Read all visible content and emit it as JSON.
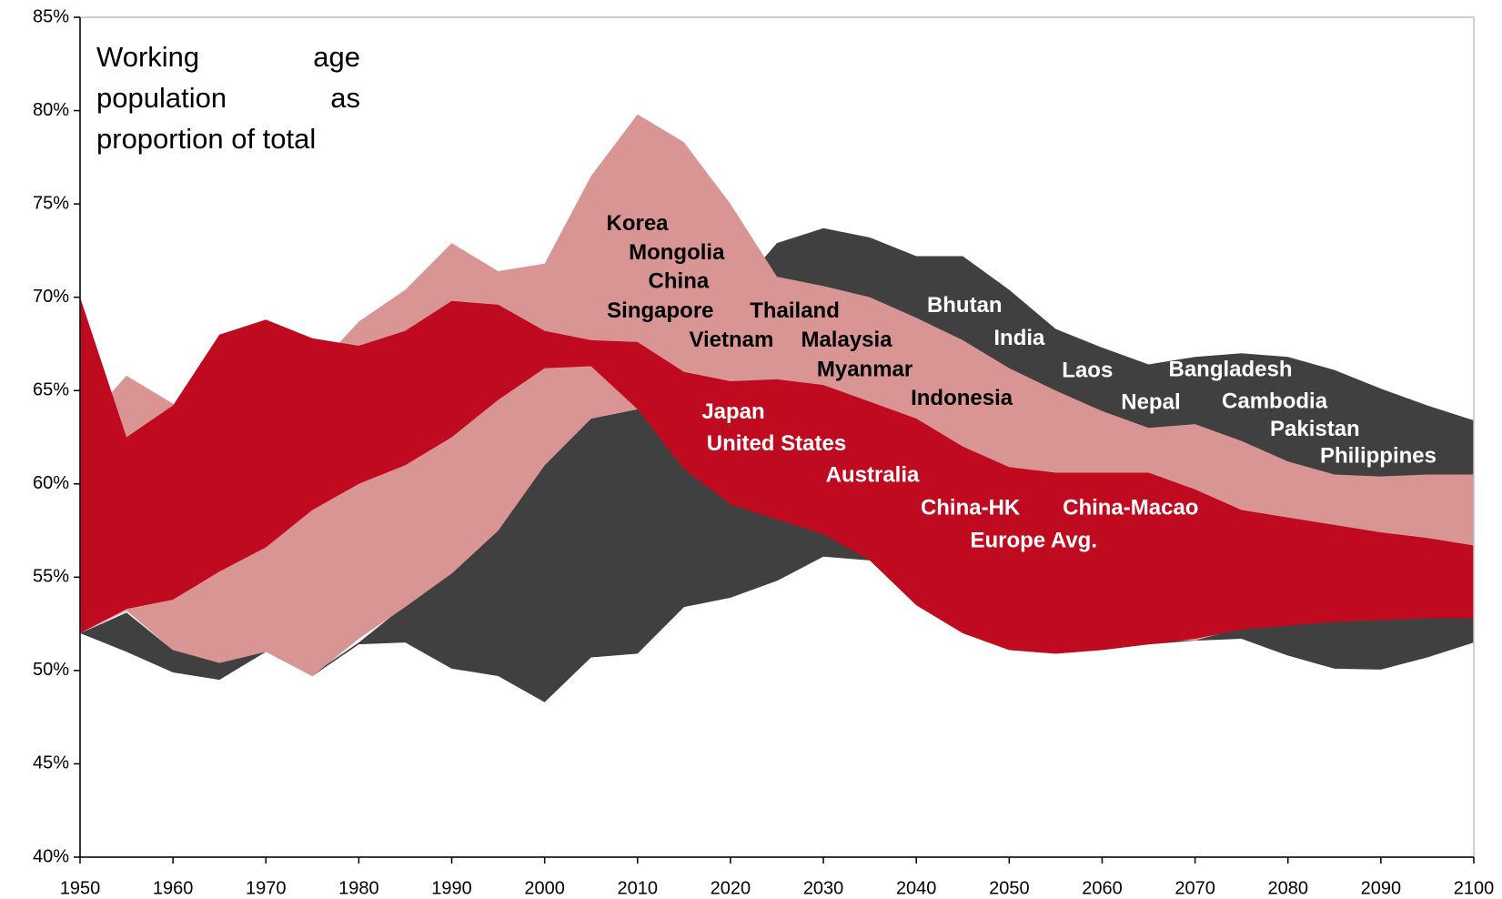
{
  "chart_data": {
    "type": "range_area",
    "title": "Working age population as proportion of total",
    "x": [
      1950,
      1955,
      1960,
      1965,
      1970,
      1975,
      1980,
      1985,
      1990,
      1995,
      2000,
      2005,
      2010,
      2015,
      2020,
      2025,
      2030,
      2035,
      2040,
      2045,
      2050,
      2055,
      2060,
      2065,
      2070,
      2075,
      2080,
      2085,
      2090,
      2095,
      2100
    ],
    "series": [
      {
        "color": "#404040",
        "upper": [
          52,
          53.1,
          51.1,
          50.5,
          51,
          49.8,
          51.5,
          53.5,
          55.2,
          57.5,
          61,
          63.5,
          64,
          66,
          70,
          72.9,
          73.7,
          73.2,
          72.2,
          72.2,
          70.4,
          68.3,
          67.3,
          66.4,
          66.8,
          67,
          66.8,
          66.1,
          65.1,
          64.2,
          63.4
        ],
        "lower": [
          52,
          51,
          49.9,
          49.5,
          51,
          49.7,
          51.4,
          51.5,
          50.1,
          49.7,
          48.3,
          50.7,
          50.9,
          53.4,
          53.9,
          54.8,
          56.1,
          55.9,
          53.5,
          52,
          51.1,
          50.9,
          51.1,
          51.4,
          51.6,
          51.7,
          50.8,
          50.1,
          50.05,
          50.7,
          51.5
        ]
      },
      {
        "color": "#d99594",
        "upper": [
          63,
          65.8,
          64.3,
          63,
          64,
          66,
          68.7,
          70.4,
          72.9,
          71.4,
          71.8,
          76.5,
          79.8,
          78.3,
          75,
          71.1,
          70.6,
          70,
          68.9,
          67.7,
          66.2,
          65,
          63.9,
          63,
          63.2,
          62.3,
          61.2,
          60.5,
          60.4,
          60.5,
          60.5
        ],
        "lower": [
          52,
          53.2,
          51.1,
          50.4,
          51,
          49.7,
          51.7,
          53.4,
          55.2,
          57.5,
          61,
          63.5,
          64,
          61,
          59,
          58.2,
          57.4,
          56,
          54,
          53,
          52,
          52,
          52,
          51.6,
          51.6,
          52.3,
          54,
          54,
          54,
          54,
          54
        ]
      },
      {
        "color": "#c00a20",
        "upper": [
          70,
          62.5,
          64.2,
          68,
          68.8,
          67.8,
          67.4,
          68.2,
          69.8,
          69.6,
          68.2,
          67.7,
          67.6,
          66,
          65.5,
          65.6,
          65.3,
          64.4,
          63.5,
          62,
          60.9,
          60.6,
          60.6,
          60.6,
          59.7,
          58.6,
          58.2,
          57.8,
          57.4,
          57.1,
          56.7
        ],
        "lower": [
          52,
          53.3,
          53.8,
          55.3,
          56.6,
          58.6,
          60,
          61,
          62.5,
          64.5,
          66.2,
          66.3,
          64,
          60.8,
          58.9,
          58.1,
          57.3,
          55.9,
          53.5,
          52,
          51.1,
          50.9,
          51.1,
          51.4,
          51.7,
          52.2,
          52.4,
          52.6,
          52.7,
          52.8,
          52.8
        ]
      }
    ],
    "annotations": [
      "Korea",
      "Mongolia",
      "China",
      "Singapore",
      "Vietnam",
      "Thailand",
      "Malaysia",
      "Myanmar",
      "Indonesia",
      "Bhutan",
      "India",
      "Laos",
      "Nepal",
      "Bangladesh",
      "Cambodia",
      "Pakistan",
      "Philippines",
      "Japan",
      "United States",
      "Australia",
      "China-HK",
      "China-Macao",
      "Europe Avg."
    ],
    "xlim": [
      1950,
      2100
    ],
    "xticks": [
      1950,
      1960,
      1970,
      1980,
      1990,
      2000,
      2010,
      2020,
      2030,
      2040,
      2050,
      2060,
      2070,
      2080,
      2090,
      2100
    ],
    "ylim": [
      40,
      85
    ],
    "yticks": [
      {
        "value": 40,
        "label": "40%"
      },
      {
        "value": 45,
        "label": "45%"
      },
      {
        "value": 50,
        "label": "50%"
      },
      {
        "value": 55,
        "label": "55%"
      },
      {
        "value": 60,
        "label": "60%"
      },
      {
        "value": 65,
        "label": "65%"
      },
      {
        "value": 70,
        "label": "70%"
      },
      {
        "value": 75,
        "label": "75%"
      },
      {
        "value": 80,
        "label": "80%"
      },
      {
        "value": 85,
        "label": "85%"
      }
    ]
  }
}
